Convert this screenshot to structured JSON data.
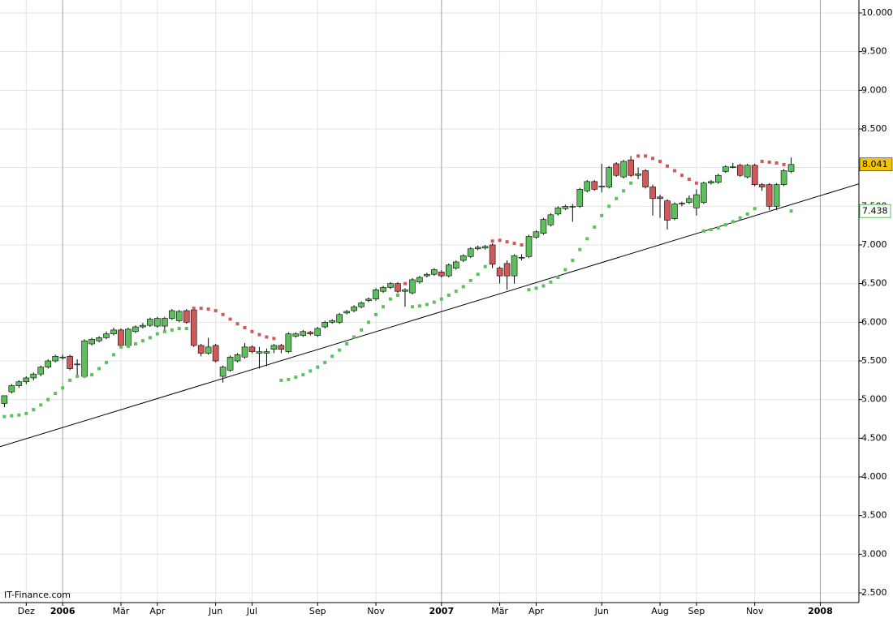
{
  "chart_data": {
    "type": "candlestick",
    "watermark": "IT-Finance.com",
    "xlim": [
      -0.6,
      117.3
    ],
    "xticks": [
      {
        "value": 3,
        "label": "Dez"
      },
      {
        "value": 8,
        "label": "2006"
      },
      {
        "value": 16,
        "label": "Mär"
      },
      {
        "value": 21,
        "label": "Apr"
      },
      {
        "value": 29,
        "label": "Jun"
      },
      {
        "value": 34,
        "label": "Jul"
      },
      {
        "value": 43,
        "label": "Sep"
      },
      {
        "value": 51,
        "label": "Nov"
      },
      {
        "value": 60,
        "label": "2007"
      },
      {
        "value": 68,
        "label": "Mär"
      },
      {
        "value": 73,
        "label": "Apr"
      },
      {
        "value": 82,
        "label": "Jun"
      },
      {
        "value": 90,
        "label": "Aug"
      },
      {
        "value": 95,
        "label": "Sep"
      },
      {
        "value": 103,
        "label": "Nov"
      },
      {
        "value": 112,
        "label": "2008"
      }
    ],
    "year_ticks": [
      1,
      8,
      15
    ],
    "ylim": [
      2374,
      10168
    ],
    "yticks": [
      {
        "value": 2500,
        "label": "2.500"
      },
      {
        "value": 3000,
        "label": "3.000"
      },
      {
        "value": 3500,
        "label": "3.500"
      },
      {
        "value": 4000,
        "label": "4.000"
      },
      {
        "value": 4500,
        "label": "4.500"
      },
      {
        "value": 5000,
        "label": "5.000"
      },
      {
        "value": 5500,
        "label": "5.500"
      },
      {
        "value": 6000,
        "label": "6.000"
      },
      {
        "value": 6500,
        "label": "6.500"
      },
      {
        "value": 7000,
        "label": "7.000"
      },
      {
        "value": 7500,
        "label": "7.500"
      },
      {
        "value": 8000,
        "label": "8.000"
      },
      {
        "value": 8500,
        "label": "8.500"
      },
      {
        "value": 9000,
        "label": "9.000"
      },
      {
        "value": 9500,
        "label": "9.500"
      },
      {
        "value": 10000,
        "label": "10.000"
      }
    ],
    "grid": true,
    "up_color": "#5cc05c",
    "down_color": "#d05a5a",
    "candles": [
      [
        4950,
        5000,
        4900,
        5050
      ],
      [
        5100,
        5200,
        5080,
        5180
      ],
      [
        5180,
        5250,
        5150,
        5230
      ],
      [
        5230,
        5300,
        5200,
        5280
      ],
      [
        5280,
        5350,
        5250,
        5330
      ],
      [
        5330,
        5440,
        5300,
        5420
      ],
      [
        5420,
        5520,
        5400,
        5500
      ],
      [
        5500,
        5580,
        5480,
        5560
      ],
      [
        5540,
        5580,
        5520,
        5550
      ],
      [
        5560,
        5580,
        5380,
        5400
      ],
      [
        5450,
        5520,
        5300,
        5460
      ],
      [
        5300,
        5780,
        5280,
        5760
      ],
      [
        5720,
        5800,
        5700,
        5780
      ],
      [
        5760,
        5820,
        5740,
        5800
      ],
      [
        5800,
        5880,
        5780,
        5850
      ],
      [
        5850,
        5930,
        5830,
        5900
      ],
      [
        5900,
        5920,
        5680,
        5700
      ],
      [
        5700,
        5930,
        5680,
        5910
      ],
      [
        5880,
        5960,
        5860,
        5940
      ],
      [
        5940,
        5990,
        5920,
        5960
      ],
      [
        5960,
        6060,
        5940,
        6040
      ],
      [
        5950,
        6070,
        5930,
        6050
      ],
      [
        5950,
        6070,
        5900,
        6050
      ],
      [
        6050,
        6170,
        6030,
        6150
      ],
      [
        6020,
        6160,
        6000,
        6140
      ],
      [
        6150,
        6170,
        5980,
        6000
      ],
      [
        6160,
        6180,
        5680,
        5700
      ],
      [
        5700,
        5720,
        5560,
        5600
      ],
      [
        5600,
        5800,
        5580,
        5680
      ],
      [
        5700,
        5720,
        5480,
        5500
      ],
      [
        5300,
        5440,
        5220,
        5420
      ],
      [
        5380,
        5570,
        5360,
        5550
      ],
      [
        5500,
        5600,
        5480,
        5580
      ],
      [
        5550,
        5730,
        5530,
        5680
      ],
      [
        5680,
        5700,
        5600,
        5620
      ],
      [
        5600,
        5680,
        5400,
        5620
      ],
      [
        5600,
        5660,
        5430,
        5620
      ],
      [
        5650,
        5720,
        5600,
        5700
      ],
      [
        5700,
        5720,
        5600,
        5650
      ],
      [
        5620,
        5870,
        5600,
        5850
      ],
      [
        5820,
        5870,
        5800,
        5850
      ],
      [
        5830,
        5900,
        5810,
        5880
      ],
      [
        5870,
        5890,
        5830,
        5850
      ],
      [
        5830,
        5940,
        5810,
        5920
      ],
      [
        5940,
        6020,
        5920,
        6000
      ],
      [
        6000,
        6040,
        5980,
        6020
      ],
      [
        6000,
        6120,
        5980,
        6100
      ],
      [
        6120,
        6160,
        6100,
        6140
      ],
      [
        6150,
        6220,
        6130,
        6200
      ],
      [
        6200,
        6270,
        6180,
        6250
      ],
      [
        6280,
        6320,
        6260,
        6300
      ],
      [
        6300,
        6440,
        6280,
        6420
      ],
      [
        6400,
        6470,
        6380,
        6450
      ],
      [
        6450,
        6520,
        6430,
        6500
      ],
      [
        6500,
        6520,
        6380,
        6400
      ],
      [
        6400,
        6440,
        6200,
        6420
      ],
      [
        6380,
        6570,
        6360,
        6550
      ],
      [
        6520,
        6600,
        6500,
        6580
      ],
      [
        6600,
        6640,
        6580,
        6620
      ],
      [
        6620,
        6700,
        6600,
        6680
      ],
      [
        6650,
        6670,
        6580,
        6600
      ],
      [
        6600,
        6760,
        6580,
        6740
      ],
      [
        6700,
        6800,
        6680,
        6780
      ],
      [
        6800,
        6880,
        6780,
        6860
      ],
      [
        6850,
        6970,
        6830,
        6950
      ],
      [
        6950,
        6990,
        6930,
        6970
      ],
      [
        6960,
        7000,
        6940,
        6980
      ],
      [
        7000,
        7020,
        6700,
        6750
      ],
      [
        6700,
        6720,
        6500,
        6600
      ],
      [
        6760,
        6800,
        6420,
        6600
      ],
      [
        6600,
        6880,
        6500,
        6860
      ],
      [
        6840,
        6880,
        6800,
        6830
      ],
      [
        6850,
        7130,
        6830,
        7110
      ],
      [
        7100,
        7190,
        7080,
        7170
      ],
      [
        7150,
        7350,
        7130,
        7330
      ],
      [
        7260,
        7410,
        7240,
        7390
      ],
      [
        7400,
        7500,
        7380,
        7480
      ],
      [
        7470,
        7520,
        7450,
        7500
      ],
      [
        7500,
        7530,
        7300,
        7500
      ],
      [
        7500,
        7740,
        7480,
        7720
      ],
      [
        7700,
        7840,
        7680,
        7820
      ],
      [
        7820,
        7840,
        7700,
        7720
      ],
      [
        7760,
        8050,
        7680,
        7760
      ],
      [
        7750,
        8020,
        7730,
        8000
      ],
      [
        8050,
        8070,
        7880,
        7900
      ],
      [
        7880,
        8100,
        7860,
        8080
      ],
      [
        8100,
        8150,
        7880,
        7900
      ],
      [
        7900,
        8000,
        7850,
        7920
      ],
      [
        7960,
        7980,
        7730,
        7750
      ],
      [
        7750,
        7780,
        7380,
        7600
      ],
      [
        7620,
        7650,
        7350,
        7600
      ],
      [
        7570,
        7590,
        7200,
        7320
      ],
      [
        7340,
        7550,
        7320,
        7530
      ],
      [
        7530,
        7560,
        7500,
        7540
      ],
      [
        7550,
        7640,
        7530,
        7600
      ],
      [
        7480,
        7720,
        7380,
        7650
      ],
      [
        7550,
        7820,
        7530,
        7800
      ],
      [
        7800,
        7840,
        7780,
        7820
      ],
      [
        7810,
        7920,
        7790,
        7900
      ],
      [
        7950,
        8030,
        7930,
        8010
      ],
      [
        8010,
        8060,
        7990,
        8010
      ],
      [
        8030,
        8050,
        7880,
        7900
      ],
      [
        7880,
        8050,
        7860,
        8030
      ],
      [
        8030,
        8050,
        7760,
        7780
      ],
      [
        7780,
        7800,
        7700,
        7750
      ],
      [
        7780,
        7800,
        7450,
        7500
      ],
      [
        7500,
        7800,
        7450,
        7780
      ],
      [
        7780,
        7980,
        7760,
        7960
      ],
      [
        7950,
        8130,
        7930,
        8041
      ]
    ],
    "sar": [
      4780,
      4790,
      4800,
      4820,
      4870,
      4930,
      5000,
      5080,
      5150,
      5250,
      5300,
      5300,
      5320,
      5400,
      5480,
      5580,
      5680,
      5690,
      5720,
      5760,
      5800,
      5850,
      5880,
      5900,
      5920,
      5920,
      6180,
      6180,
      6170,
      6150,
      6100,
      6040,
      5980,
      5930,
      5880,
      5840,
      5810,
      5790,
      5250,
      5260,
      5290,
      5320,
      5370,
      5420,
      5480,
      5560,
      5640,
      5720,
      5810,
      5900,
      6000,
      6100,
      6200,
      6300,
      6350,
      6500,
      6200,
      6210,
      6230,
      6260,
      6300,
      6350,
      6400,
      6460,
      6540,
      6620,
      6720,
      7050,
      7060,
      7040,
      7020,
      7000,
      6420,
      6440,
      6470,
      6520,
      6580,
      6680,
      6800,
      6940,
      7080,
      7230,
      7380,
      7500,
      7600,
      7700,
      7800,
      8150,
      8150,
      8120,
      8080,
      8020,
      7960,
      7900,
      7850,
      7800,
      7180,
      7200,
      7220,
      7260,
      7300,
      7350,
      7400,
      7470,
      8080,
      8070,
      8060,
      8040,
      7438
    ],
    "trendline": {
      "x": [
        -0.6,
        117.3
      ],
      "y": [
        4390,
        7790
      ]
    },
    "price_tag": {
      "value": 8041,
      "label": "8.041",
      "color": "#f5c400"
    },
    "sar_tag": {
      "value": 7438,
      "label": "7.438",
      "color": "#5cc05c"
    }
  }
}
